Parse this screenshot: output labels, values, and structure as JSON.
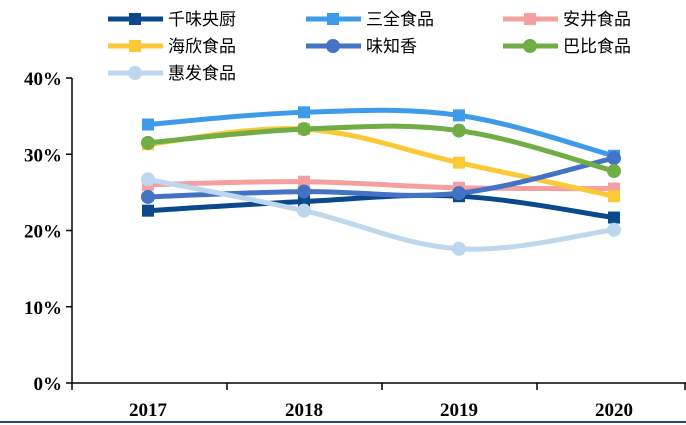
{
  "chart_data": {
    "type": "line",
    "x": [
      "2017",
      "2018",
      "2019",
      "2020"
    ],
    "y_ticks": [
      "0%",
      "10%",
      "20%",
      "30%",
      "40%"
    ],
    "ylim": [
      0,
      40
    ],
    "grid": false,
    "legend_position": "top",
    "series": [
      {
        "name": "千味央厨",
        "values": [
          22.6,
          23.8,
          24.5,
          21.7
        ],
        "color": "#0a4a8c",
        "marker": "square"
      },
      {
        "name": "三全食品",
        "values": [
          33.9,
          35.5,
          35.1,
          29.8
        ],
        "color": "#3d9be9",
        "marker": "square"
      },
      {
        "name": "安井食品",
        "values": [
          26.0,
          26.4,
          25.6,
          25.5
        ],
        "color": "#f4a0a0",
        "marker": "square"
      },
      {
        "name": "海欣食品",
        "values": [
          31.3,
          33.3,
          28.9,
          24.5
        ],
        "color": "#fcc936",
        "marker": "square"
      },
      {
        "name": "味知香",
        "values": [
          24.4,
          25.1,
          24.9,
          29.5
        ],
        "color": "#4472c4",
        "marker": "circle"
      },
      {
        "name": "巴比食品",
        "values": [
          31.5,
          33.3,
          33.1,
          27.8
        ],
        "color": "#70ad47",
        "marker": "circle"
      },
      {
        "name": "惠发食品",
        "values": [
          26.7,
          22.6,
          17.6,
          20.1
        ],
        "color": "#bdd7ee",
        "marker": "circle"
      }
    ]
  }
}
